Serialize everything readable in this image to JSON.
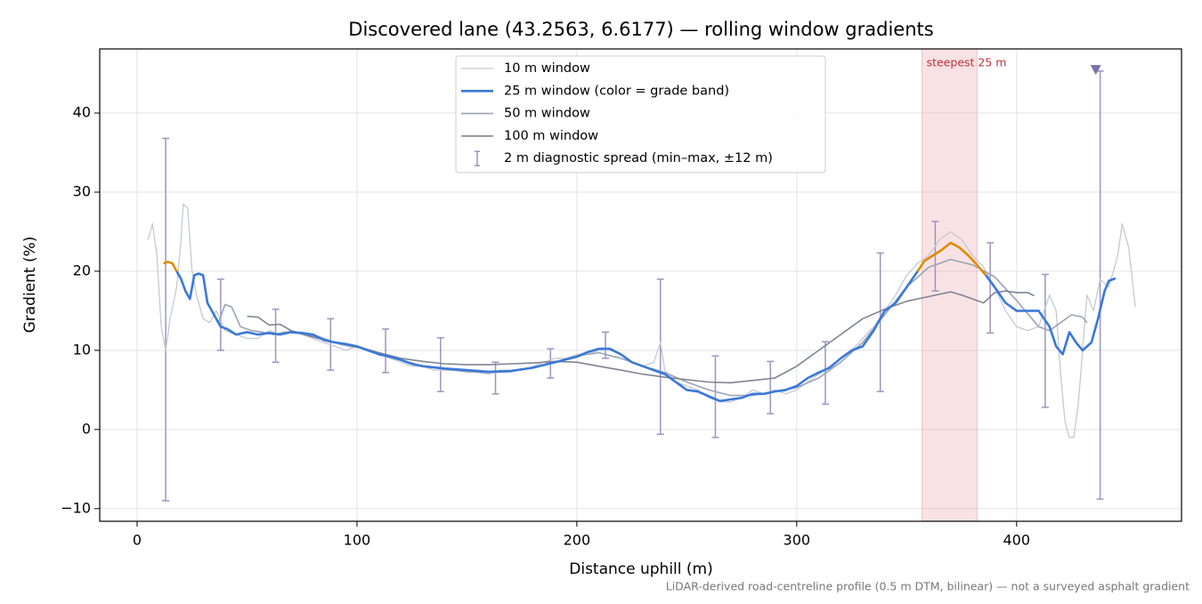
{
  "chart_data": {
    "type": "line",
    "title": "Discovered lane (43.2563, 6.6177) — rolling window gradients",
    "xlabel": "Distance uphill (m)",
    "ylabel": "Gradient (%)",
    "footnote": "LiDAR-derived road-centreline profile (0.5 m DTM, bilinear) — not a surveyed asphalt gradient",
    "xlim": [
      -17,
      475
    ],
    "ylim": [
      -11.6,
      48.1
    ],
    "xticks": [
      0,
      100,
      200,
      300,
      400
    ],
    "yticks": [
      {
        "value": -10,
        "label": "−10"
      },
      0,
      10,
      20,
      30,
      40
    ],
    "grid": true,
    "legend": "upper center",
    "highlight_band": {
      "x": [
        357,
        382
      ],
      "label": "steepest 25 m",
      "color": "#e8a0a6",
      "label_color": "#c0303a"
    },
    "series": [
      {
        "name": "10 m window",
        "color": "#c5c9d3",
        "width": 1.3,
        "x": [
          5,
          7,
          9,
          11,
          13,
          15,
          18,
          20,
          21,
          23,
          25,
          27,
          30,
          33,
          36,
          40,
          45,
          50,
          55,
          60,
          65,
          70,
          75,
          80,
          85,
          90,
          95,
          100,
          105,
          110,
          115,
          120,
          125,
          130,
          135,
          140,
          145,
          150,
          155,
          160,
          165,
          170,
          175,
          180,
          185,
          190,
          195,
          200,
          205,
          210,
          215,
          220,
          225,
          230,
          235,
          238,
          240,
          245,
          250,
          255,
          260,
          265,
          270,
          275,
          280,
          285,
          290,
          295,
          300,
          305,
          310,
          315,
          320,
          325,
          330,
          335,
          340,
          345,
          350,
          355,
          360,
          365,
          370,
          375,
          380,
          385,
          390,
          395,
          400,
          405,
          410,
          415,
          418,
          420,
          422,
          424,
          426,
          428,
          430,
          432,
          435,
          438,
          442,
          446,
          448,
          451,
          454
        ],
        "values": [
          24,
          26,
          22,
          13,
          10,
          14,
          18,
          24,
          28.5,
          28,
          20,
          17,
          14,
          13.5,
          15,
          12.5,
          12,
          11.5,
          11.5,
          12.5,
          12,
          12.5,
          12,
          11.5,
          11,
          10.5,
          10,
          10.5,
          10,
          9.5,
          9,
          8.5,
          8,
          8,
          7.5,
          7.5,
          7.5,
          7.5,
          7.2,
          7,
          7.5,
          7.5,
          7.5,
          8,
          8.5,
          9,
          9,
          9.5,
          9.5,
          10,
          10,
          9.5,
          8.5,
          8,
          8.5,
          11,
          7.5,
          6,
          5.5,
          5,
          4,
          3.5,
          3.5,
          4,
          5,
          4.5,
          5,
          4.5,
          5,
          6,
          7,
          8,
          9,
          10,
          11.5,
          13,
          15,
          17,
          19.5,
          21,
          22,
          24,
          25,
          24,
          22,
          20.5,
          18,
          15,
          13,
          12.5,
          13,
          17,
          15,
          7,
          1,
          -1,
          -1,
          3,
          10,
          17,
          15,
          19,
          18,
          22,
          26,
          23,
          15.5
        ]
      },
      {
        "name": "25 m window (color = grade band)",
        "color": "#3a78d8",
        "width": 2.6,
        "grade_bands": [
          {
            "min": 20,
            "color": "#e08a00"
          }
        ],
        "x": [
          12,
          14,
          16,
          18,
          20,
          22,
          24,
          26,
          28,
          30,
          32,
          35,
          38,
          41,
          45,
          50,
          55,
          60,
          65,
          70,
          75,
          80,
          85,
          90,
          95,
          100,
          105,
          110,
          115,
          120,
          125,
          130,
          140,
          150,
          160,
          170,
          180,
          190,
          200,
          205,
          210,
          215,
          220,
          225,
          230,
          240,
          245,
          250,
          255,
          260,
          265,
          270,
          275,
          280,
          285,
          290,
          295,
          300,
          305,
          310,
          315,
          320,
          325,
          330,
          335,
          340,
          345,
          350,
          355,
          358,
          362,
          366,
          370,
          374,
          378,
          382,
          386,
          390,
          395,
          400,
          405,
          410,
          415,
          418,
          421,
          424,
          427,
          430,
          434,
          437,
          440,
          442,
          445
        ],
        "values": [
          21,
          21.2,
          21,
          20,
          19,
          17.5,
          16.5,
          19.5,
          19.7,
          19.5,
          16,
          14.5,
          13,
          12.7,
          12,
          12.3,
          12,
          12.2,
          12,
          12.3,
          12.2,
          12,
          11.3,
          11,
          10.8,
          10.5,
          10,
          9.5,
          9.2,
          8.8,
          8.3,
          8,
          7.7,
          7.5,
          7.3,
          7.4,
          7.8,
          8.5,
          9.2,
          9.8,
          10.2,
          10.2,
          9.5,
          8.5,
          8,
          7,
          6,
          5,
          4.8,
          4.2,
          3.6,
          3.8,
          4,
          4.5,
          4.5,
          4.8,
          5,
          5.5,
          6.5,
          7.2,
          7.8,
          9,
          10,
          10.5,
          12.5,
          15,
          16,
          18,
          20,
          21.3,
          22,
          22.7,
          23.6,
          23,
          22,
          20.8,
          19.5,
          18,
          16,
          15,
          15,
          15,
          13,
          10.5,
          9.5,
          12.3,
          11,
          10,
          11,
          14,
          17.5,
          18.8,
          19.1
        ]
      },
      {
        "name": "50 m window",
        "color": "#9aa3b5",
        "width": 1.6,
        "x": [
          37,
          40,
          43,
          47,
          52,
          57,
          62,
          67,
          72,
          77,
          82,
          87,
          92,
          97,
          102,
          110,
          120,
          130,
          140,
          150,
          160,
          170,
          180,
          190,
          200,
          210,
          220,
          230,
          240,
          250,
          260,
          270,
          280,
          290,
          300,
          310,
          320,
          330,
          340,
          350,
          360,
          370,
          380,
          390,
          400,
          410,
          415,
          420,
          425,
          430,
          432
        ],
        "values": [
          13.5,
          15.8,
          15.5,
          13,
          12.5,
          12.3,
          12,
          12.3,
          12.2,
          12,
          11.8,
          11.3,
          10.8,
          10.5,
          10.3,
          9.7,
          8.8,
          8,
          7.6,
          7.3,
          7.2,
          7.3,
          7.8,
          8.5,
          9.3,
          9.7,
          9,
          8,
          7.2,
          6,
          5,
          4.3,
          4.3,
          4.8,
          5.3,
          6.5,
          8.5,
          11,
          14.5,
          18,
          20.5,
          21.5,
          20.8,
          19.3,
          16.3,
          13,
          12.5,
          13.5,
          14.5,
          14.2,
          13.5
        ]
      },
      {
        "name": "100 m window",
        "color": "#7f8493",
        "width": 1.6,
        "x": [
          50,
          55,
          60,
          65,
          70,
          80,
          90,
          100,
          110,
          120,
          130,
          140,
          150,
          160,
          170,
          180,
          190,
          200,
          210,
          220,
          230,
          240,
          250,
          260,
          270,
          280,
          290,
          300,
          310,
          320,
          330,
          340,
          350,
          360,
          370,
          375,
          380,
          385,
          390,
          395,
          400,
          405,
          408
        ],
        "values": [
          14.3,
          14.2,
          13.2,
          13.3,
          12.5,
          11.7,
          11,
          10.5,
          9.7,
          9,
          8.6,
          8.3,
          8.2,
          8.2,
          8.3,
          8.4,
          8.6,
          8.5,
          8,
          7.5,
          7,
          6.6,
          6.3,
          6,
          5.9,
          6.2,
          6.5,
          8,
          10,
          12,
          14,
          15.2,
          16.2,
          16.8,
          17.4,
          17,
          16.5,
          16,
          17.3,
          17.5,
          17.3,
          17.3,
          16.9
        ]
      }
    ],
    "errorbars": {
      "name": "2 m diagnostic spread (min–max, ±12 m)",
      "color": "#9b95c0",
      "x": [
        13,
        38,
        63,
        88,
        113,
        138,
        163,
        188,
        213,
        238,
        263,
        288,
        313,
        338,
        363,
        388,
        413,
        438
      ],
      "low": [
        -9,
        10,
        8.5,
        7.5,
        7.2,
        4.8,
        4.5,
        6.5,
        9,
        -0.6,
        -1,
        2,
        3.2,
        4.8,
        17.5,
        12.2,
        2.8,
        -8.8
      ],
      "high": [
        36.8,
        19,
        15.2,
        14,
        12.7,
        11.6,
        8.5,
        10.2,
        12.3,
        19,
        9.3,
        8.6,
        11.1,
        22.3,
        26.3,
        23.6,
        19.6,
        45.3
      ]
    },
    "marker": {
      "x": 436,
      "y": 45.5,
      "color": "#7d6fa8"
    }
  }
}
